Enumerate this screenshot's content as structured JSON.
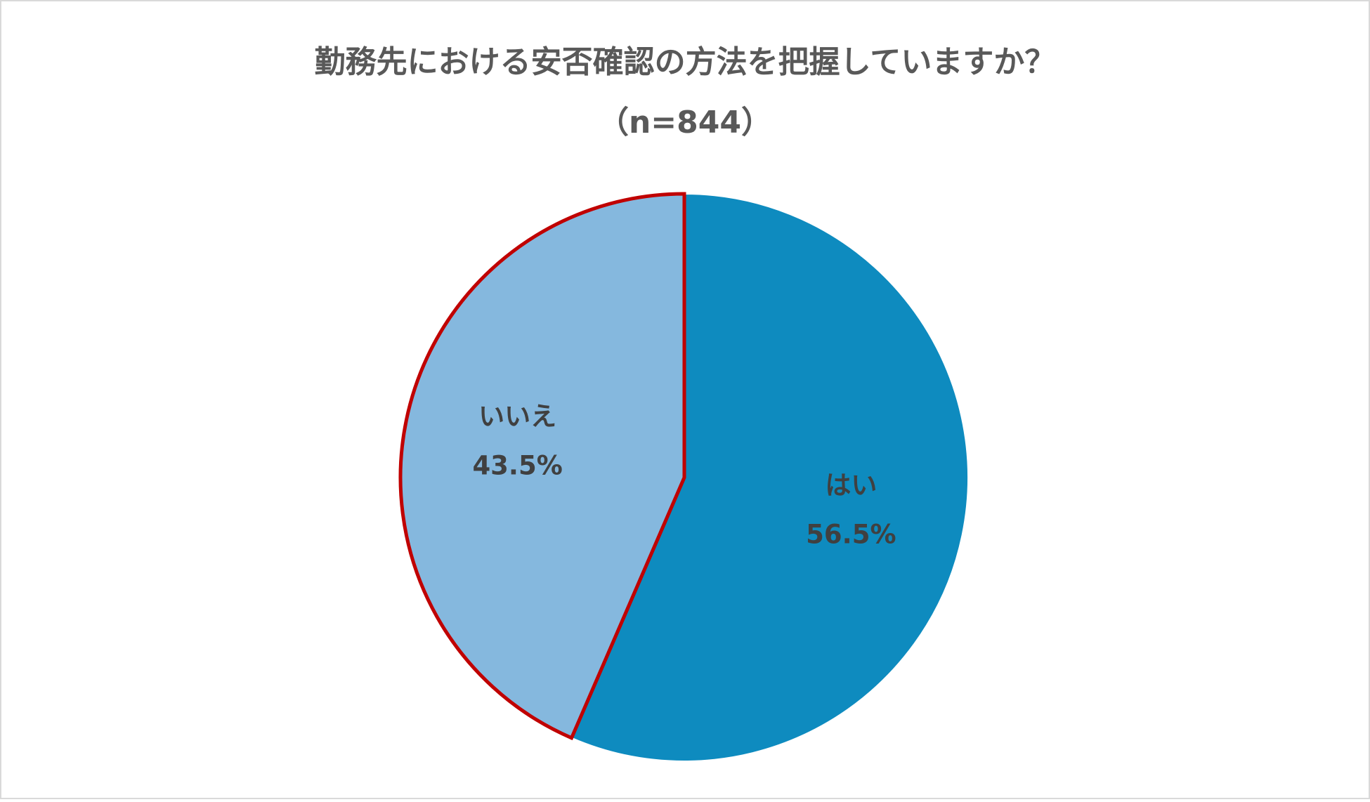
{
  "chart_data": {
    "type": "pie",
    "title": "勤務先における安否確認の方法を把握していますか？",
    "subtitle": "（n=844）",
    "categories": [
      "はい",
      "いいえ"
    ],
    "values": [
      56.5,
      43.5
    ],
    "value_labels": [
      "56.5%",
      "43.5%"
    ],
    "colors": [
      "#0e8bbf",
      "#85b8de"
    ],
    "highlight_outline": [
      "none",
      "#c00000"
    ]
  }
}
